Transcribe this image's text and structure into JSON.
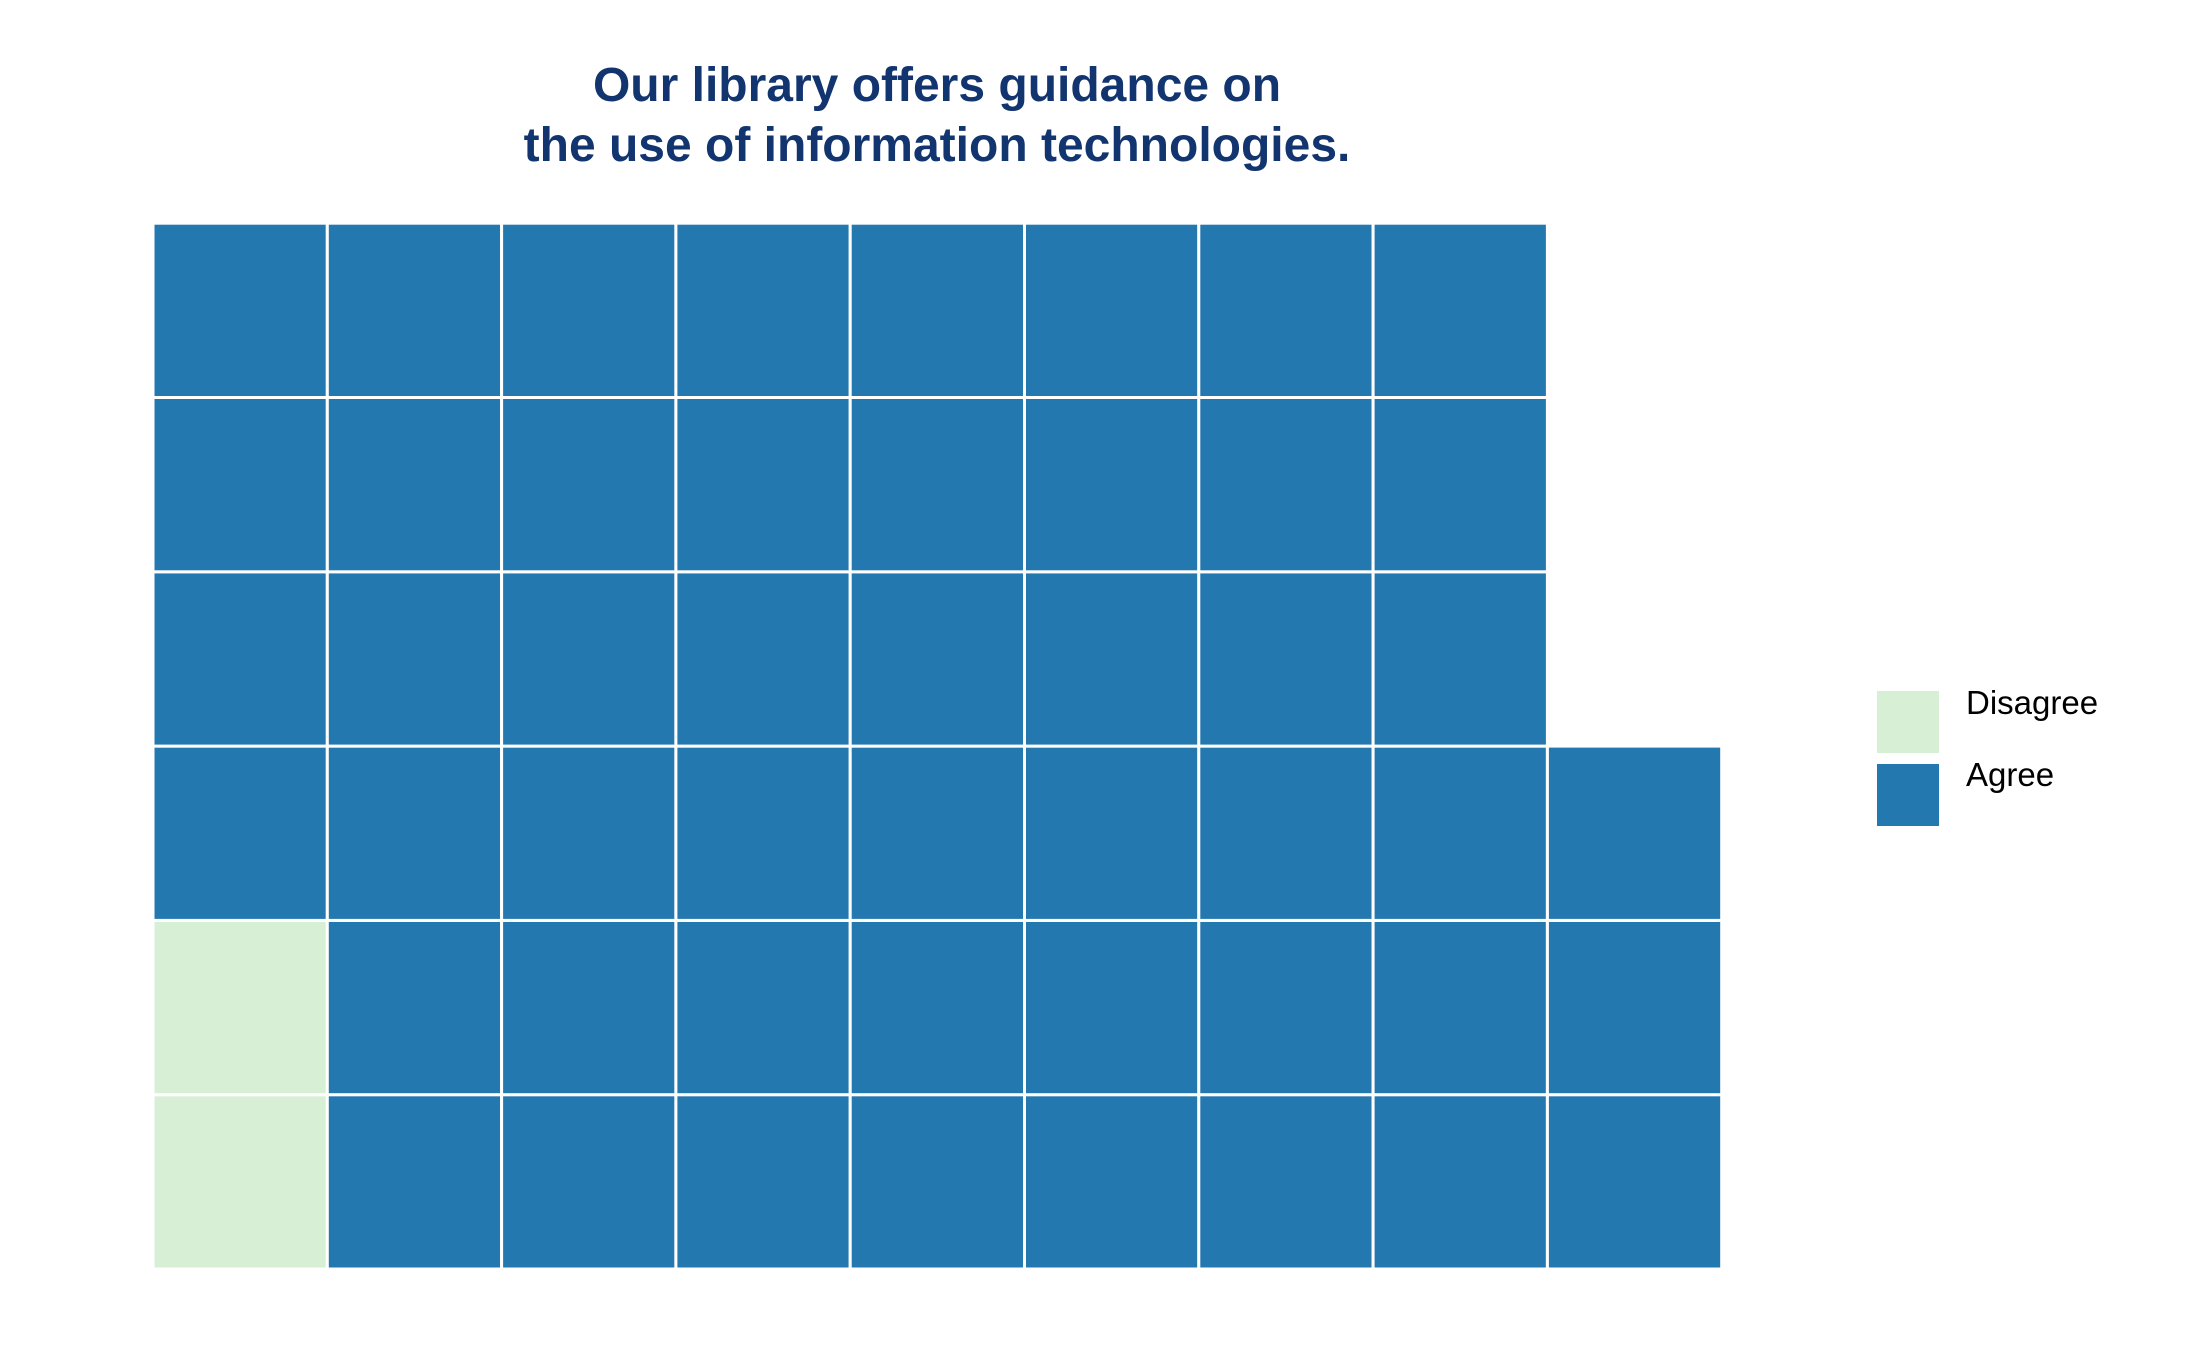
{
  "chart_data": {
    "type": "waffle",
    "title": "Our library offers guidance on the use of information technologies.",
    "title_lines": [
      "Our library offers guidance on",
      "the use of information technologies."
    ],
    "categories": [
      "Disagree",
      "Agree"
    ],
    "values": [
      2,
      49
    ],
    "colors": {
      "Disagree": "#d7efd5",
      "Agree": "#2478b0"
    },
    "grid": {
      "columns": 9,
      "rows": 6,
      "fill_order": "column-major from bottom-left"
    },
    "legend": {
      "position": "right",
      "entries": [
        "Disagree",
        "Agree"
      ]
    }
  }
}
